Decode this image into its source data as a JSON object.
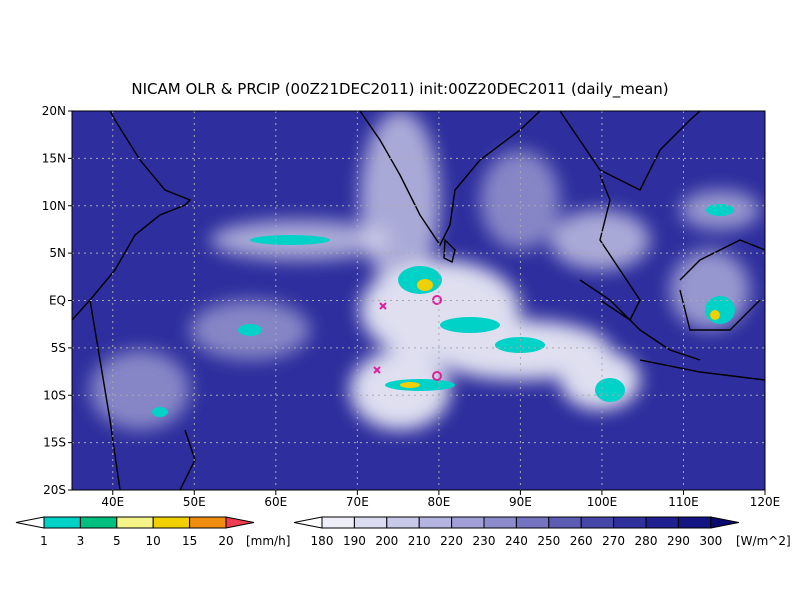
{
  "title": "NICAM OLR & PRCIP (00Z21DEC2011) init:00Z20DEC2011 (daily_mean)",
  "map": {
    "lat_labels": [
      "20N",
      "15N",
      "10N",
      "5N",
      "EQ",
      "5S",
      "10S",
      "15S",
      "20S"
    ],
    "lon_labels": [
      "40E",
      "50E",
      "60E",
      "70E",
      "80E",
      "90E",
      "100E",
      "110E",
      "120E"
    ]
  },
  "legends": [
    {
      "labels": [
        "1",
        "3",
        "5",
        "10",
        "15",
        "20"
      ],
      "units": "[mm/h]",
      "colors": [
        "#ffffff",
        "#00d2c8",
        "#00c080",
        "#f4f488",
        "#f0d000",
        "#f08c10",
        "#f03c50"
      ]
    },
    {
      "labels": [
        "180",
        "190",
        "200",
        "210",
        "220",
        "230",
        "240",
        "250",
        "260",
        "270",
        "280",
        "290",
        "300"
      ],
      "units": "[W/m^2]",
      "colors": [
        "#ffffff",
        "#eeeef8",
        "#dcdcf0",
        "#c8c8e8",
        "#b4b4e0",
        "#a0a0d6",
        "#8c8ccc",
        "#7474c0",
        "#5c5cb4",
        "#4646a8",
        "#30309c",
        "#202090",
        "#141482",
        "#0a0a6e"
      ]
    }
  ]
}
